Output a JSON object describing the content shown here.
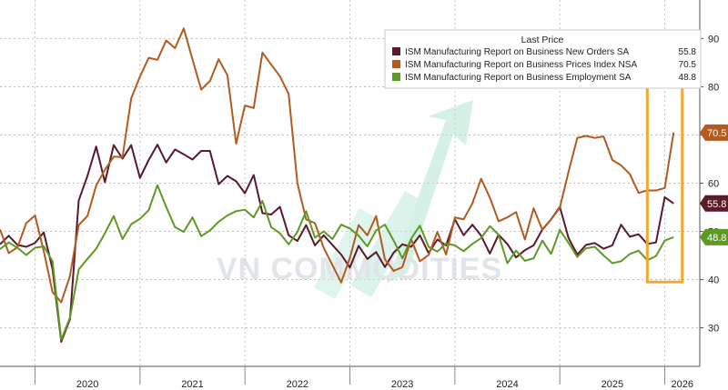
{
  "chart_data": {
    "type": "line",
    "y_axis": {
      "position": "right",
      "ticks": [
        30,
        40,
        50,
        60,
        70,
        80,
        90
      ],
      "ylim": [
        22,
        98
      ]
    },
    "x_axis": {
      "tick_labels": [
        "2020",
        "2021",
        "2022",
        "2023",
        "2024",
        "2025",
        "2026"
      ],
      "xlim": [
        "2019-09",
        "2026-05"
      ]
    },
    "grid": true,
    "legend": {
      "title": "Last Price",
      "placement": "top-right",
      "entries": [
        {
          "label": "ISM Manufacturing Report on Business New Orders SA",
          "value": "55.8"
        },
        {
          "label": "ISM Manufacturing Report on Business Prices Index NSA",
          "value": "70.5"
        },
        {
          "label": "ISM Manufacturing Report on Business Employment SA",
          "value": "48.8"
        }
      ]
    },
    "series": [
      {
        "color": "#5b1a2a",
        "last_label": "55.8",
        "points": [
          [
            "2019-09",
            47.3
          ],
          [
            "2019-10",
            49.1
          ],
          [
            "2019-11",
            47.2
          ],
          [
            "2019-12",
            46.8
          ],
          [
            "2020-01",
            47.6
          ],
          [
            "2020-02",
            49.8
          ],
          [
            "2020-03",
            42.2
          ],
          [
            "2020-04",
            27.1
          ],
          [
            "2020-05",
            31.8
          ],
          [
            "2020-06",
            56.4
          ],
          [
            "2020-07",
            61.5
          ],
          [
            "2020-08",
            67.6
          ],
          [
            "2020-09",
            60.2
          ],
          [
            "2020-10",
            67.9
          ],
          [
            "2020-11",
            65.1
          ],
          [
            "2020-12",
            67.9
          ],
          [
            "2021-01",
            61.1
          ],
          [
            "2021-02",
            64.8
          ],
          [
            "2021-03",
            68.0
          ],
          [
            "2021-04",
            64.3
          ],
          [
            "2021-05",
            67.0
          ],
          [
            "2021-06",
            66.0
          ],
          [
            "2021-07",
            64.9
          ],
          [
            "2021-08",
            66.7
          ],
          [
            "2021-09",
            66.7
          ],
          [
            "2021-10",
            59.8
          ],
          [
            "2021-11",
            61.5
          ],
          [
            "2021-12",
            60.4
          ],
          [
            "2022-01",
            57.9
          ],
          [
            "2022-02",
            61.7
          ],
          [
            "2022-03",
            53.8
          ],
          [
            "2022-04",
            53.5
          ],
          [
            "2022-05",
            55.1
          ],
          [
            "2022-06",
            49.2
          ],
          [
            "2022-07",
            48.0
          ],
          [
            "2022-08",
            51.3
          ],
          [
            "2022-09",
            47.1
          ],
          [
            "2022-10",
            49.2
          ],
          [
            "2022-11",
            47.2
          ],
          [
            "2022-12",
            45.2
          ],
          [
            "2023-01",
            42.5
          ],
          [
            "2023-02",
            47.0
          ],
          [
            "2023-03",
            44.3
          ],
          [
            "2023-04",
            45.7
          ],
          [
            "2023-05",
            42.6
          ],
          [
            "2023-06",
            45.6
          ],
          [
            "2023-07",
            47.3
          ],
          [
            "2023-08",
            46.8
          ],
          [
            "2023-09",
            49.2
          ],
          [
            "2023-10",
            45.5
          ],
          [
            "2023-11",
            48.3
          ],
          [
            "2023-12",
            47.1
          ],
          [
            "2024-01",
            52.5
          ],
          [
            "2024-02",
            49.2
          ],
          [
            "2024-03",
            51.4
          ],
          [
            "2024-04",
            49.1
          ],
          [
            "2024-05",
            45.4
          ],
          [
            "2024-06",
            49.3
          ],
          [
            "2024-07",
            47.4
          ],
          [
            "2024-08",
            44.6
          ],
          [
            "2024-09",
            46.1
          ],
          [
            "2024-10",
            47.1
          ],
          [
            "2024-11",
            50.4
          ],
          [
            "2024-12",
            52.5
          ],
          [
            "2025-01",
            55.1
          ],
          [
            "2025-02",
            48.6
          ],
          [
            "2025-03",
            45.2
          ],
          [
            "2025-04",
            47.2
          ],
          [
            "2025-05",
            47.6
          ],
          [
            "2025-06",
            46.4
          ],
          [
            "2025-07",
            47.1
          ],
          [
            "2025-08",
            51.4
          ],
          [
            "2025-09",
            48.9
          ],
          [
            "2025-10",
            49.4
          ],
          [
            "2025-11",
            47.4
          ],
          [
            "2025-12",
            47.7
          ],
          [
            "2026-01",
            57.1
          ],
          [
            "2026-02",
            55.8
          ]
        ]
      },
      {
        "color": "#b35a1f",
        "last_label": "70.5",
        "points": [
          [
            "2019-09",
            50.4
          ],
          [
            "2019-10",
            45.5
          ],
          [
            "2019-11",
            46.7
          ],
          [
            "2019-12",
            51.7
          ],
          [
            "2020-01",
            53.3
          ],
          [
            "2020-02",
            45.9
          ],
          [
            "2020-03",
            37.4
          ],
          [
            "2020-04",
            35.3
          ],
          [
            "2020-05",
            40.8
          ],
          [
            "2020-06",
            51.3
          ],
          [
            "2020-07",
            53.2
          ],
          [
            "2020-08",
            59.5
          ],
          [
            "2020-09",
            62.8
          ],
          [
            "2020-10",
            65.5
          ],
          [
            "2020-11",
            65.4
          ],
          [
            "2020-12",
            77.6
          ],
          [
            "2021-01",
            82.1
          ],
          [
            "2021-02",
            86.0
          ],
          [
            "2021-03",
            85.6
          ],
          [
            "2021-04",
            89.6
          ],
          [
            "2021-05",
            88.0
          ],
          [
            "2021-06",
            92.1
          ],
          [
            "2021-07",
            85.7
          ],
          [
            "2021-08",
            79.4
          ],
          [
            "2021-09",
            81.2
          ],
          [
            "2021-10",
            85.7
          ],
          [
            "2021-11",
            82.4
          ],
          [
            "2021-12",
            68.2
          ],
          [
            "2022-01",
            76.1
          ],
          [
            "2022-02",
            75.6
          ],
          [
            "2022-03",
            87.1
          ],
          [
            "2022-04",
            84.6
          ],
          [
            "2022-05",
            82.2
          ],
          [
            "2022-06",
            78.5
          ],
          [
            "2022-07",
            60.0
          ],
          [
            "2022-08",
            52.5
          ],
          [
            "2022-09",
            51.7
          ],
          [
            "2022-10",
            46.6
          ],
          [
            "2022-11",
            43.0
          ],
          [
            "2022-12",
            39.4
          ],
          [
            "2023-01",
            44.5
          ],
          [
            "2023-02",
            51.3
          ],
          [
            "2023-03",
            49.2
          ],
          [
            "2023-04",
            53.2
          ],
          [
            "2023-05",
            44.2
          ],
          [
            "2023-06",
            41.8
          ],
          [
            "2023-07",
            42.6
          ],
          [
            "2023-08",
            48.4
          ],
          [
            "2023-09",
            43.8
          ],
          [
            "2023-10",
            45.1
          ],
          [
            "2023-11",
            49.9
          ],
          [
            "2023-12",
            45.2
          ],
          [
            "2024-01",
            52.9
          ],
          [
            "2024-02",
            52.5
          ],
          [
            "2024-03",
            55.8
          ],
          [
            "2024-04",
            60.9
          ],
          [
            "2024-05",
            57.0
          ],
          [
            "2024-06",
            52.1
          ],
          [
            "2024-07",
            52.9
          ],
          [
            "2024-08",
            54.0
          ],
          [
            "2024-09",
            48.3
          ],
          [
            "2024-10",
            54.8
          ],
          [
            "2024-11",
            50.3
          ],
          [
            "2024-12",
            52.5
          ],
          [
            "2025-01",
            54.9
          ],
          [
            "2025-02",
            62.4
          ],
          [
            "2025-03",
            69.4
          ],
          [
            "2025-04",
            69.8
          ],
          [
            "2025-05",
            69.4
          ],
          [
            "2025-06",
            69.7
          ],
          [
            "2025-07",
            64.8
          ],
          [
            "2025-08",
            63.7
          ],
          [
            "2025-09",
            61.9
          ],
          [
            "2025-10",
            58.0
          ],
          [
            "2025-11",
            58.5
          ],
          [
            "2025-12",
            58.5
          ],
          [
            "2026-01",
            59.0
          ],
          [
            "2026-02",
            70.5
          ]
        ]
      },
      {
        "color": "#5c9a24",
        "last_label": "48.8",
        "points": [
          [
            "2019-09",
            46.3
          ],
          [
            "2019-10",
            47.7
          ],
          [
            "2019-11",
            46.6
          ],
          [
            "2019-12",
            45.1
          ],
          [
            "2020-01",
            46.6
          ],
          [
            "2020-02",
            46.9
          ],
          [
            "2020-03",
            43.8
          ],
          [
            "2020-04",
            27.5
          ],
          [
            "2020-05",
            32.1
          ],
          [
            "2020-06",
            42.1
          ],
          [
            "2020-07",
            44.3
          ],
          [
            "2020-08",
            46.4
          ],
          [
            "2020-09",
            49.6
          ],
          [
            "2020-10",
            53.2
          ],
          [
            "2020-11",
            48.4
          ],
          [
            "2020-12",
            51.5
          ],
          [
            "2021-01",
            52.6
          ],
          [
            "2021-02",
            54.4
          ],
          [
            "2021-03",
            59.6
          ],
          [
            "2021-04",
            55.1
          ],
          [
            "2021-05",
            50.9
          ],
          [
            "2021-06",
            49.9
          ],
          [
            "2021-07",
            52.9
          ],
          [
            "2021-08",
            49.0
          ],
          [
            "2021-09",
            50.2
          ],
          [
            "2021-10",
            52.0
          ],
          [
            "2021-11",
            53.3
          ],
          [
            "2021-12",
            54.2
          ],
          [
            "2022-01",
            54.5
          ],
          [
            "2022-02",
            52.9
          ],
          [
            "2022-03",
            56.3
          ],
          [
            "2022-04",
            50.9
          ],
          [
            "2022-05",
            49.6
          ],
          [
            "2022-06",
            47.3
          ],
          [
            "2022-07",
            49.9
          ],
          [
            "2022-08",
            54.2
          ],
          [
            "2022-09",
            48.7
          ],
          [
            "2022-10",
            50.0
          ],
          [
            "2022-11",
            48.4
          ],
          [
            "2022-12",
            51.4
          ],
          [
            "2023-01",
            50.6
          ],
          [
            "2023-02",
            49.1
          ],
          [
            "2023-03",
            46.9
          ],
          [
            "2023-04",
            50.2
          ],
          [
            "2023-05",
            51.4
          ],
          [
            "2023-06",
            48.1
          ],
          [
            "2023-07",
            44.4
          ],
          [
            "2023-08",
            48.5
          ],
          [
            "2023-09",
            51.2
          ],
          [
            "2023-10",
            46.8
          ],
          [
            "2023-11",
            45.8
          ],
          [
            "2023-12",
            47.5
          ],
          [
            "2024-01",
            47.1
          ],
          [
            "2024-02",
            45.9
          ],
          [
            "2024-03",
            47.4
          ],
          [
            "2024-04",
            48.6
          ],
          [
            "2024-05",
            51.1
          ],
          [
            "2024-06",
            49.3
          ],
          [
            "2024-07",
            43.4
          ],
          [
            "2024-08",
            46.0
          ],
          [
            "2024-09",
            43.9
          ],
          [
            "2024-10",
            44.4
          ],
          [
            "2024-11",
            48.1
          ],
          [
            "2024-12",
            45.3
          ],
          [
            "2025-01",
            50.3
          ],
          [
            "2025-02",
            47.6
          ],
          [
            "2025-03",
            44.7
          ],
          [
            "2025-04",
            46.5
          ],
          [
            "2025-05",
            46.8
          ],
          [
            "2025-06",
            45.0
          ],
          [
            "2025-07",
            43.4
          ],
          [
            "2025-08",
            43.8
          ],
          [
            "2025-09",
            45.3
          ],
          [
            "2025-10",
            46.0
          ],
          [
            "2025-11",
            44.0
          ],
          [
            "2025-12",
            44.9
          ],
          [
            "2026-01",
            48.1
          ],
          [
            "2026-02",
            48.8
          ]
        ]
      }
    ],
    "highlight_box": {
      "color": "#f0a830",
      "from": "2025-11",
      "to": "2026-03",
      "y_range": [
        39.5,
        84.5
      ]
    }
  },
  "watermark": {
    "text": "VN COMMODITIES",
    "arrow_color": "#a8e4cc"
  }
}
